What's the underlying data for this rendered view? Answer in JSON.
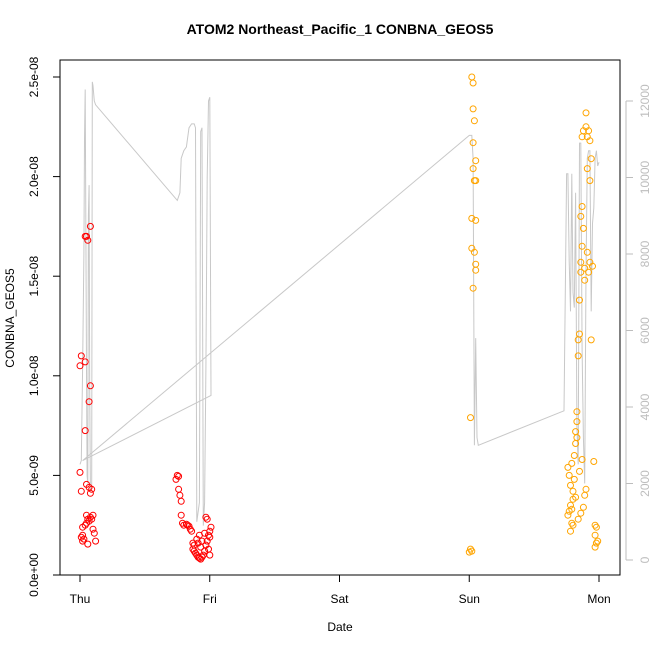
{
  "chart_data": {
    "type": "scatter",
    "title": "ATOM2 Northeast_Pacific_1 CONBNA_GEOS5",
    "xlabel": "Date",
    "ylabel": "CONBNA_GEOS5",
    "x_ticks": [
      {
        "label": "Thu",
        "day": 0
      },
      {
        "label": "Fri",
        "day": 1
      },
      {
        "label": "Sat",
        "day": 2
      },
      {
        "label": "Sun",
        "day": 3
      },
      {
        "label": "Mon",
        "day": 4
      }
    ],
    "xlim_days": [
      -0.09,
      4.11
    ],
    "ylim": [
      0,
      2.5e-08
    ],
    "y_ticks": [
      {
        "label": "0.0e+00",
        "value": 0
      },
      {
        "label": "5.0e-09",
        "value": 5e-09
      },
      {
        "label": "1.0e-08",
        "value": 1e-08
      },
      {
        "label": "1.5e-08",
        "value": 1.5e-08
      },
      {
        "label": "2.0e-08",
        "value": 2e-08
      },
      {
        "label": "2.5e-08",
        "value": 2.5e-08
      }
    ],
    "right_axis": {
      "ylim": [
        0,
        12500
      ],
      "ticks": [
        {
          "label": "0",
          "value": 0
        },
        {
          "label": "2000",
          "value": 2000
        },
        {
          "label": "4000",
          "value": 4000
        },
        {
          "label": "6000",
          "value": 6000
        },
        {
          "label": "8000",
          "value": 8000
        },
        {
          "label": "10000",
          "value": 10000
        },
        {
          "label": "12000",
          "value": 12000
        }
      ]
    },
    "grid": false,
    "colors": {
      "series1": "#ff0000",
      "series2": "#ffa500",
      "line": "#c8c8c8",
      "axis": "#000000",
      "right_axis": "#bdbdbd"
    },
    "series": [
      {
        "marker": "open-circle",
        "color": "#ff0000",
        "points": [
          [
            0.0,
            1.05e-08
          ],
          [
            0.01,
            1.1e-08
          ],
          [
            0.0,
            5.15e-09
          ],
          [
            0.01,
            4.2e-09
          ],
          [
            0.02,
            2.4e-09
          ],
          [
            0.02,
            2e-09
          ],
          [
            0.01,
            1.9e-09
          ],
          [
            0.03,
            1.8e-09
          ],
          [
            0.02,
            1.7e-09
          ],
          [
            0.04,
            1.07e-08
          ],
          [
            0.04,
            7.25e-09
          ],
          [
            0.04,
            1.7e-08
          ],
          [
            0.05,
            1.7e-08
          ],
          [
            0.06,
            1.68e-08
          ],
          [
            0.08,
            1.75e-08
          ],
          [
            0.08,
            9.5e-09
          ],
          [
            0.07,
            8.7e-09
          ],
          [
            0.05,
            4.55e-09
          ],
          [
            0.07,
            4.4e-09
          ],
          [
            0.08,
            4.1e-09
          ],
          [
            0.09,
            4.3e-09
          ],
          [
            0.05,
            3e-09
          ],
          [
            0.06,
            2.8e-09
          ],
          [
            0.07,
            2.7e-09
          ],
          [
            0.08,
            2.9e-09
          ],
          [
            0.1,
            3e-09
          ],
          [
            0.09,
            2.8e-09
          ],
          [
            0.04,
            2.5e-09
          ],
          [
            0.05,
            2.6e-09
          ],
          [
            0.1,
            2.3e-09
          ],
          [
            0.11,
            2.1e-09
          ],
          [
            0.12,
            1.7e-09
          ],
          [
            0.06,
            1.55e-09
          ],
          [
            0.75,
            5e-09
          ],
          [
            0.76,
            4.95e-09
          ],
          [
            0.74,
            4.8e-09
          ],
          [
            0.76,
            4.3e-09
          ],
          [
            0.77,
            4e-09
          ],
          [
            0.78,
            3.7e-09
          ],
          [
            0.78,
            3e-09
          ],
          [
            0.79,
            2.6e-09
          ],
          [
            0.8,
            2.5e-09
          ],
          [
            0.82,
            2.55e-09
          ],
          [
            0.83,
            2.5e-09
          ],
          [
            0.84,
            2.45e-09
          ],
          [
            0.85,
            2.3e-09
          ],
          [
            0.86,
            2.2e-09
          ],
          [
            0.87,
            1.6e-09
          ],
          [
            0.88,
            1.5e-09
          ],
          [
            0.87,
            1.3e-09
          ],
          [
            0.88,
            1.2e-09
          ],
          [
            0.89,
            1.1e-09
          ],
          [
            0.9,
            1e-09
          ],
          [
            0.91,
            9e-10
          ],
          [
            0.92,
            8.5e-10
          ],
          [
            0.93,
            8e-10
          ],
          [
            0.94,
            9e-10
          ],
          [
            0.95,
            1e-09
          ],
          [
            0.96,
            1.2e-09
          ],
          [
            0.97,
            1.5e-09
          ],
          [
            0.98,
            1.7e-09
          ],
          [
            0.99,
            2e-09
          ],
          [
            1.0,
            2.2e-09
          ],
          [
            1.01,
            2.4e-09
          ],
          [
            0.97,
            2.9e-09
          ],
          [
            0.98,
            2.8e-09
          ],
          [
            1.0,
            1.9e-09
          ],
          [
            0.9,
            1.8e-09
          ],
          [
            0.92,
            2e-09
          ],
          [
            0.94,
            1.7e-09
          ],
          [
            0.96,
            2.1e-09
          ],
          [
            0.99,
            1.3e-09
          ],
          [
            1.0,
            1e-09
          ],
          [
            0.91,
            1.6e-09
          ],
          [
            0.93,
            1.4e-09
          ]
        ]
      },
      {
        "marker": "open-circle",
        "color": "#ffa500",
        "points": [
          [
            3.02,
            2.5e-08
          ],
          [
            3.03,
            2.47e-08
          ],
          [
            3.03,
            2.34e-08
          ],
          [
            3.03,
            2.17e-08
          ],
          [
            3.04,
            2.28e-08
          ],
          [
            3.05,
            2.08e-08
          ],
          [
            3.03,
            2.04e-08
          ],
          [
            3.04,
            1.98e-08
          ],
          [
            3.05,
            1.98e-08
          ],
          [
            3.02,
            1.79e-08
          ],
          [
            3.05,
            1.78e-08
          ],
          [
            3.02,
            1.64e-08
          ],
          [
            3.04,
            1.62e-08
          ],
          [
            3.05,
            1.56e-08
          ],
          [
            3.05,
            1.53e-08
          ],
          [
            3.03,
            1.44e-08
          ],
          [
            3.01,
            7.9e-09
          ],
          [
            3.01,
            1.3e-09
          ],
          [
            3.0,
            1.15e-09
          ],
          [
            3.02,
            1.2e-09
          ],
          [
            3.78,
            2.2e-09
          ],
          [
            3.79,
            2.6e-09
          ],
          [
            3.76,
            3e-09
          ],
          [
            3.77,
            3.2e-09
          ],
          [
            3.78,
            3.5e-09
          ],
          [
            3.8,
            3.8e-09
          ],
          [
            3.8,
            4.2e-09
          ],
          [
            3.78,
            4.5e-09
          ],
          [
            3.77,
            5e-09
          ],
          [
            3.76,
            5.4e-09
          ],
          [
            3.79,
            5.6e-09
          ],
          [
            3.81,
            6e-09
          ],
          [
            3.82,
            6.6e-09
          ],
          [
            3.82,
            7.2e-09
          ],
          [
            3.83,
            7.7e-09
          ],
          [
            3.83,
            8.2e-09
          ],
          [
            3.84,
            1.1e-08
          ],
          [
            3.84,
            1.18e-08
          ],
          [
            3.85,
            1.21e-08
          ],
          [
            3.85,
            1.38e-08
          ],
          [
            3.86,
            1.52e-08
          ],
          [
            3.86,
            1.57e-08
          ],
          [
            3.87,
            1.65e-08
          ],
          [
            3.86,
            1.8e-08
          ],
          [
            3.87,
            1.85e-08
          ],
          [
            3.88,
            1.74e-08
          ],
          [
            3.89,
            1.54e-08
          ],
          [
            3.89,
            1.48e-08
          ],
          [
            3.87,
            2.2e-08
          ],
          [
            3.88,
            2.23e-08
          ],
          [
            3.9,
            2.25e-08
          ],
          [
            3.9,
            2.32e-08
          ],
          [
            3.91,
            2.2e-08
          ],
          [
            3.92,
            2.23e-08
          ],
          [
            3.93,
            2.18e-08
          ],
          [
            3.94,
            2.09e-08
          ],
          [
            3.91,
            2.04e-08
          ],
          [
            3.93,
            1.98e-08
          ],
          [
            3.91,
            1.62e-08
          ],
          [
            3.92,
            1.52e-08
          ],
          [
            3.93,
            1.57e-08
          ],
          [
            3.94,
            1.18e-08
          ],
          [
            3.95,
            1.55e-08
          ],
          [
            3.96,
            5.7e-09
          ],
          [
            3.97,
            2e-09
          ],
          [
            3.97,
            2.5e-09
          ],
          [
            3.98,
            2.4e-09
          ],
          [
            3.98,
            1.6e-09
          ],
          [
            3.97,
            1.4e-09
          ],
          [
            3.99,
            1.7e-09
          ],
          [
            3.84,
            2.8e-09
          ],
          [
            3.86,
            3.1e-09
          ],
          [
            3.88,
            3.4e-09
          ],
          [
            3.89,
            4e-09
          ],
          [
            3.9,
            4.3e-09
          ],
          [
            3.85,
            5.2e-09
          ],
          [
            3.87,
            5.8e-09
          ],
          [
            3.83,
            6.9e-09
          ],
          [
            3.81,
            4.8e-09
          ],
          [
            3.82,
            3.9e-09
          ],
          [
            3.8,
            2.5e-09
          ],
          [
            3.79,
            3.3e-09
          ]
        ]
      }
    ],
    "line_series": {
      "axis": "right",
      "color": "#c8c8c8",
      "points": [
        [
          0.0,
          2500
        ],
        [
          0.01,
          2600
        ],
        [
          0.02,
          5000
        ],
        [
          0.03,
          8000
        ],
        [
          0.035,
          11000
        ],
        [
          0.04,
          12300
        ],
        [
          0.045,
          9000
        ],
        [
          0.05,
          5000
        ],
        [
          0.055,
          2200
        ],
        [
          0.06,
          2000
        ],
        [
          0.065,
          9000
        ],
        [
          0.07,
          9800
        ],
        [
          0.075,
          4500
        ],
        [
          0.08,
          1800
        ],
        [
          0.09,
          1900
        ],
        [
          0.095,
          12500
        ],
        [
          0.1,
          12400
        ],
        [
          0.11,
          12000
        ],
        [
          0.12,
          11900
        ],
        [
          0.75,
          9400
        ],
        [
          0.77,
          9600
        ],
        [
          0.78,
          10500
        ],
        [
          0.8,
          10700
        ],
        [
          0.82,
          10800
        ],
        [
          0.84,
          11300
        ],
        [
          0.86,
          11400
        ],
        [
          0.88,
          11400
        ],
        [
          0.89,
          11300
        ],
        [
          0.9,
          1000
        ],
        [
          0.92,
          1500
        ],
        [
          0.93,
          11200
        ],
        [
          0.94,
          11300
        ],
        [
          0.95,
          900
        ],
        [
          0.96,
          1500
        ],
        [
          0.97,
          5000
        ],
        [
          0.98,
          10000
        ],
        [
          0.99,
          12000
        ],
        [
          1.0,
          12100
        ],
        [
          1.01,
          4300
        ],
        [
          0.02,
          2600
        ],
        [
          3.0,
          11100
        ],
        [
          3.02,
          11100
        ],
        [
          3.03,
          10500
        ],
        [
          3.04,
          3000
        ],
        [
          3.05,
          5800
        ],
        [
          3.06,
          3200
        ],
        [
          3.07,
          3000
        ],
        [
          3.73,
          3900
        ],
        [
          3.75,
          10100
        ],
        [
          3.76,
          10100
        ],
        [
          3.77,
          7800
        ],
        [
          3.78,
          6500
        ],
        [
          3.79,
          10100
        ],
        [
          3.8,
          7000
        ],
        [
          3.81,
          6600
        ],
        [
          3.82,
          9600
        ],
        [
          3.83,
          3500
        ],
        [
          3.84,
          2500
        ],
        [
          3.85,
          10900
        ],
        [
          3.86,
          10900
        ],
        [
          3.87,
          5500
        ],
        [
          3.88,
          3200
        ],
        [
          3.89,
          2000
        ],
        [
          3.9,
          7500
        ],
        [
          3.91,
          10500
        ],
        [
          3.92,
          10700
        ],
        [
          3.93,
          10700
        ],
        [
          3.94,
          6500
        ],
        [
          3.95,
          8800
        ],
        [
          3.96,
          9200
        ],
        [
          3.97,
          10500
        ],
        [
          3.98,
          10700
        ],
        [
          3.99,
          10300
        ],
        [
          4.0,
          10400
        ]
      ]
    }
  }
}
